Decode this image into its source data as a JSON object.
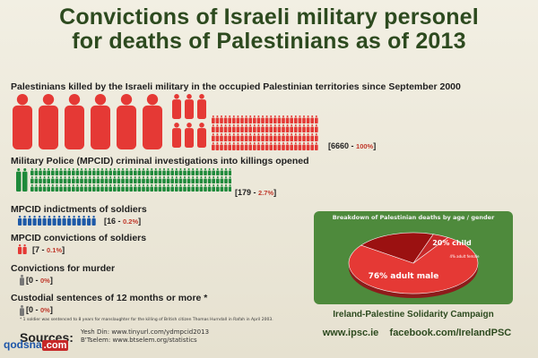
{
  "title_line1": "Convictions of Israeli military personel",
  "title_line2": "for deaths of Palestinians as of 2013",
  "sections": [
    {
      "label": "Palestinians killed by the Israeli military in the occupied Palestinian territories since September 2000",
      "count": "6660",
      "pct": "100%"
    },
    {
      "label": "Military Police (MPCID) criminal investigations into killings opened",
      "count": "179",
      "pct": "2.7%"
    },
    {
      "label": "MPCID indictments of soldiers",
      "count": "16",
      "pct": "0.2%"
    },
    {
      "label": "MPCID convictions of soldiers",
      "count": "7",
      "pct": "0.1%"
    },
    {
      "label": "Convictions for murder",
      "count": "0",
      "pct": "0%"
    },
    {
      "label": "Custodial sentences of 12 months or more *",
      "count": "0",
      "pct": "0%"
    }
  ],
  "footnote": "* 1 soldier was sentenced to 8 years for manslaughter for the killing of British citizen Thomas Hurndall in Rafah in April 2003.",
  "sources_label": "Sources:",
  "sources": [
    "Yesh Din: www.tinyurl.com/ydmpcid2013",
    "B'Tselem: www.btselem.org/statistics"
  ],
  "pie": {
    "title": "Breakdown of Palestinian deaths by age / gender",
    "slices": [
      {
        "label": "76% adult male",
        "value": 76,
        "color": "#e53935"
      },
      {
        "label": "20% child",
        "value": 20,
        "color": "#9b1111"
      },
      {
        "label": "4% adult female",
        "value": 4,
        "color": "#c62828"
      }
    ]
  },
  "campaign": "Ireland-Palestine Solidarity Campaign",
  "website": "www.ipsc.ie",
  "facebook": "facebook.com/IrelandPSC",
  "watermark_site": "qodsna",
  "watermark_tag": ".com",
  "colors": {
    "red": "#e53935",
    "green": "#1f8a3b",
    "grey": "#777777",
    "blue": "#1e5aa8",
    "title": "#2d4a1f"
  }
}
